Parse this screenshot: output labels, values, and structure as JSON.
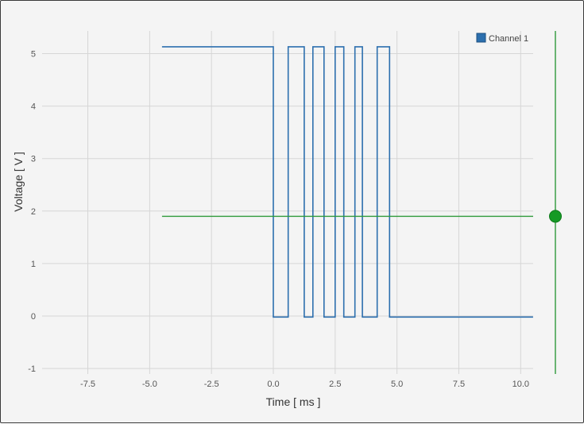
{
  "chart_data": {
    "type": "line",
    "title": "",
    "xlabel": "Time [ ms ]",
    "ylabel": "Voltage [ V ]",
    "xlim": [
      -9.5,
      10.5
    ],
    "ylim": [
      -1,
      5.4
    ],
    "x_ticks": [
      -7.5,
      -5.0,
      -2.5,
      0.0,
      2.5,
      5.0,
      7.5,
      10.0
    ],
    "x_tick_labels": [
      "-7.5",
      "-5.0",
      "-2.5",
      "0.0",
      "2.5",
      "5.0",
      "7.5",
      "10.0"
    ],
    "y_ticks": [
      -1,
      0,
      1,
      2,
      3,
      4,
      5
    ],
    "y_tick_labels": [
      "-1",
      "0",
      "1",
      "2",
      "3",
      "4",
      "5"
    ],
    "grid": true,
    "legend": {
      "position": "top-right",
      "entries": [
        "Channel 1"
      ]
    },
    "series": [
      {
        "name": "Channel 1",
        "color": "#2c6fae",
        "x": [
          -4.5,
          0.0,
          0.0,
          0.6,
          0.6,
          1.25,
          1.25,
          1.6,
          1.6,
          2.05,
          2.05,
          2.5,
          2.5,
          2.85,
          2.85,
          3.3,
          3.3,
          3.6,
          3.6,
          4.2,
          4.2,
          4.7,
          4.7,
          10.5
        ],
        "y": [
          5.13,
          5.13,
          -0.02,
          -0.02,
          5.13,
          5.13,
          -0.02,
          -0.02,
          5.13,
          5.13,
          -0.02,
          -0.02,
          5.13,
          5.13,
          -0.02,
          -0.02,
          5.13,
          5.13,
          -0.02,
          -0.02,
          5.13,
          5.13,
          -0.02,
          -0.02
        ]
      }
    ],
    "trigger": {
      "level": 1.9,
      "x_range": [
        -4.5,
        10.5
      ],
      "color": "#2e9a3a"
    }
  }
}
